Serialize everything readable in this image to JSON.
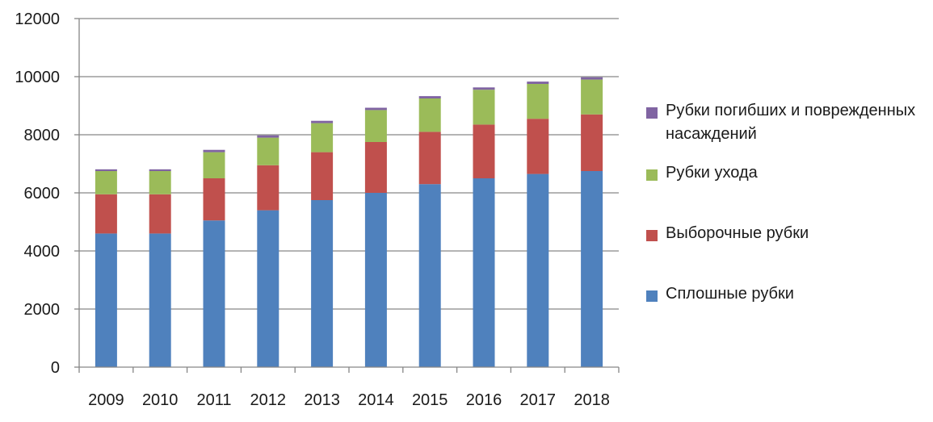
{
  "chart_data": {
    "type": "bar",
    "stacked": true,
    "categories": [
      "2009",
      "2010",
      "2011",
      "2012",
      "2013",
      "2014",
      "2015",
      "2016",
      "2017",
      "2018"
    ],
    "ylim": [
      0,
      12000
    ],
    "yticks": [
      0,
      2000,
      4000,
      6000,
      8000,
      10000,
      12000
    ],
    "ytick_labels": [
      "0",
      "2000",
      "4000",
      "6000",
      "8000",
      "10000",
      "12000"
    ],
    "grid": true,
    "legend_position": "right",
    "series": [
      {
        "name": "Сплошные рубки",
        "color": "#4F81BD",
        "values": [
          4600,
          4600,
          5050,
          5400,
          5750,
          6000,
          6300,
          6500,
          6650,
          6750
        ]
      },
      {
        "name": "Выборочные рубки",
        "color": "#C0504D",
        "values": [
          1350,
          1350,
          1450,
          1550,
          1650,
          1750,
          1800,
          1850,
          1900,
          1950
        ]
      },
      {
        "name": "Рубки ухода",
        "color": "#9BBB59",
        "values": [
          800,
          800,
          900,
          950,
          1000,
          1100,
          1150,
          1200,
          1200,
          1200
        ]
      },
      {
        "name": "Рубки погибших и поврежденных насаждений",
        "color": "#8064A2",
        "values": [
          60,
          60,
          80,
          80,
          80,
          80,
          80,
          80,
          80,
          80
        ]
      }
    ]
  }
}
